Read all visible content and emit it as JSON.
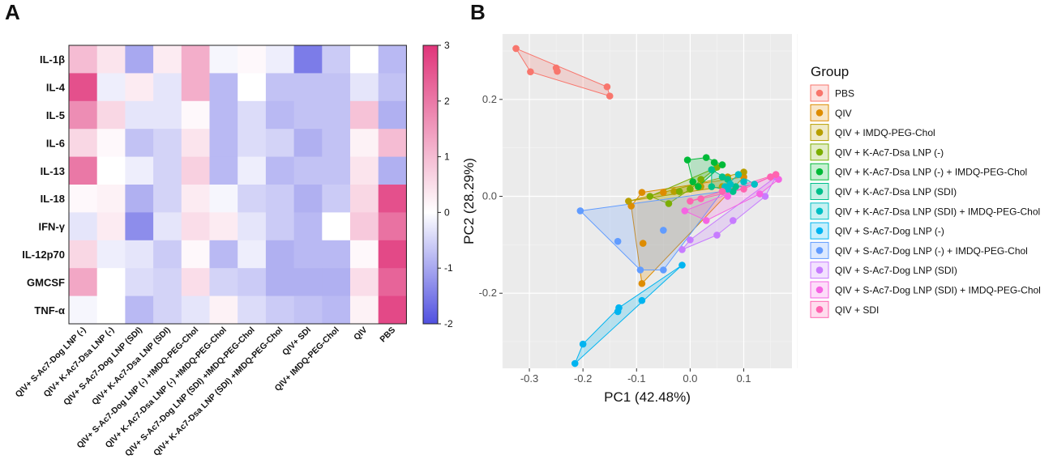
{
  "panel_labels": {
    "a": "A",
    "b": "B"
  },
  "chart_data": [
    {
      "type": "heatmap",
      "title": "",
      "rows": [
        "IL-1β",
        "IL-4",
        "IL-5",
        "IL-6",
        "IL-13",
        "IL-18",
        "IFN-γ",
        "IL-12p70",
        "GMCSF",
        "TNF-α"
      ],
      "columns": [
        "QIV+ S-Ac7-Dog LNP (-)",
        "QIV+ K-Ac7-Dsa LNP (-)",
        "QIV+ S-Ac7-Dog LNP (SDI)",
        "QIV+ K-Ac7-Dsa LNP (SDI)",
        "QIV+ S-Ac7-Dog LNP (-) +IMDQ-PEG-Chol",
        "QIV+ K-Ac7-Dsa LNP (-) +IMDQ-PEG-Chol",
        "QIV+ S-Ac7-Dog LNP (SDI) +IMDQ-PEG-Chol",
        "QIV+ K-Ac7-Dsa LNP (SDI) +IMDQ-PEG-Chol",
        "QIV+ SDI",
        "QIV+ IMDQ-PEG-Chol",
        "QIV",
        "PBS"
      ],
      "values": [
        [
          1.0,
          0.4,
          -1.0,
          0.3,
          1.2,
          -0.1,
          0.1,
          -0.2,
          -1.5,
          -0.6,
          0.0,
          -0.8
        ],
        [
          2.6,
          -0.2,
          0.3,
          -0.3,
          1.2,
          -0.8,
          0.0,
          -0.7,
          -0.7,
          -0.7,
          -0.3,
          -0.7
        ],
        [
          1.7,
          0.6,
          -0.3,
          -0.3,
          0.1,
          -0.8,
          -0.4,
          -0.8,
          -0.7,
          -0.7,
          0.9,
          -0.9
        ],
        [
          0.6,
          0.1,
          -0.7,
          -0.5,
          0.4,
          -0.8,
          -0.4,
          -0.5,
          -0.9,
          -0.7,
          0.2,
          1.0
        ],
        [
          2.0,
          0.0,
          -0.2,
          -0.5,
          0.7,
          -0.8,
          -0.2,
          -0.8,
          -0.7,
          -0.7,
          0.4,
          -0.9
        ],
        [
          0.1,
          0.2,
          -0.9,
          -0.5,
          0.3,
          -0.1,
          -0.5,
          -0.6,
          -0.9,
          -0.6,
          0.6,
          2.6
        ],
        [
          -0.3,
          0.3,
          -1.3,
          -0.3,
          0.5,
          0.3,
          -0.3,
          -0.6,
          -0.8,
          0.0,
          0.8,
          2.1
        ],
        [
          0.6,
          -0.2,
          -0.3,
          -0.6,
          0.1,
          -0.8,
          -0.2,
          -0.9,
          -0.8,
          -0.8,
          0.1,
          2.7
        ],
        [
          1.3,
          0.0,
          -0.4,
          -0.5,
          0.5,
          -0.5,
          -0.6,
          -0.9,
          -0.9,
          -0.9,
          0.5,
          2.3
        ],
        [
          -0.1,
          0.0,
          -0.8,
          -0.5,
          -0.3,
          0.2,
          -0.4,
          -0.6,
          -0.7,
          -0.8,
          0.2,
          2.7
        ]
      ],
      "scale": {
        "min": -2,
        "max": 3,
        "ticks": [
          "3",
          "2",
          "1",
          "0",
          "-1",
          "-2"
        ],
        "low_color": "#5050e0",
        "mid_color": "#ffffff",
        "high_color": "#e0357a"
      }
    },
    {
      "type": "scatter",
      "title": "",
      "xlabel": "PC1 (42.48%)",
      "ylabel": "PC2 (28.29%)",
      "xlim": [
        -0.35,
        0.19
      ],
      "ylim": [
        -0.355,
        0.335
      ],
      "xticks": [
        "-0.3",
        "-0.2",
        "-0.1",
        "0.0",
        "0.1"
      ],
      "yticks": [
        "0.2",
        "0.0",
        "-0.2"
      ],
      "grid": true,
      "hulls": true,
      "legend_title": "Group",
      "legend_position": "right",
      "series": [
        {
          "name": "PBS",
          "color": "#F8766D",
          "points": [
            [
              -0.325,
              0.305
            ],
            [
              -0.298,
              0.257
            ],
            [
              -0.25,
              0.265
            ],
            [
              -0.248,
              0.258
            ],
            [
              -0.155,
              0.226
            ],
            [
              -0.15,
              0.207
            ]
          ]
        },
        {
          "name": "QIV",
          "color": "#DE8C00",
          "points": [
            [
              -0.09,
              0.008
            ],
            [
              -0.05,
              0.008
            ],
            [
              -0.088,
              -0.097
            ],
            [
              -0.11,
              -0.02
            ],
            [
              -0.09,
              -0.18
            ],
            [
              0.1,
              0.04
            ]
          ]
        },
        {
          "name": "QIV + IMDQ-PEG-Chol",
          "color": "#B79F00",
          "points": [
            [
              -0.115,
              -0.01
            ],
            [
              -0.03,
              0.01
            ],
            [
              0.02,
              0.02
            ],
            [
              0.06,
              0.02
            ],
            [
              0.07,
              0.04
            ],
            [
              0.1,
              0.05
            ]
          ]
        },
        {
          "name": "QIV + K-Ac7-Dsa LNP (-)",
          "color": "#7CAE00",
          "points": [
            [
              -0.075,
              0.0
            ],
            [
              -0.04,
              -0.015
            ],
            [
              -0.02,
              0.01
            ],
            [
              0.0,
              0.015
            ],
            [
              0.02,
              0.035
            ],
            [
              0.05,
              0.06
            ]
          ]
        },
        {
          "name": "QIV + K-Ac7-Dsa LNP (-) + IMDQ-PEG-Chol",
          "color": "#00BA38",
          "points": [
            [
              -0.005,
              0.075
            ],
            [
              0.03,
              0.08
            ],
            [
              0.045,
              0.07
            ],
            [
              0.06,
              0.065
            ],
            [
              0.015,
              0.02
            ],
            [
              0.005,
              0.03
            ]
          ]
        },
        {
          "name": "QIV + K-Ac7-Dsa LNP (SDI)",
          "color": "#00C08B",
          "points": [
            [
              0.04,
              0.02
            ],
            [
              0.06,
              0.04
            ],
            [
              0.07,
              0.035
            ],
            [
              0.085,
              0.02
            ],
            [
              0.04,
              0.055
            ],
            [
              0.08,
              0.01
            ]
          ]
        },
        {
          "name": "QIV + K-Ac7-Dsa LNP (SDI) + IMDQ-PEG-Chol",
          "color": "#00BFC4",
          "points": [
            [
              0.07,
              0.015
            ],
            [
              0.075,
              0.025
            ],
            [
              0.09,
              0.045
            ],
            [
              0.1,
              0.03
            ],
            [
              0.12,
              0.025
            ],
            [
              0.065,
              0.02
            ]
          ]
        },
        {
          "name": "QIV + S-Ac7-Dog LNP (-)",
          "color": "#00B4F0",
          "points": [
            [
              -0.215,
              -0.345
            ],
            [
              -0.2,
              -0.305
            ],
            [
              -0.135,
              -0.238
            ],
            [
              -0.133,
              -0.23
            ],
            [
              -0.09,
              -0.215
            ],
            [
              -0.015,
              -0.142
            ]
          ]
        },
        {
          "name": "QIV + S-Ac7-Dog LNP (-) + IMDQ-PEG-Chol",
          "color": "#619CFF",
          "points": [
            [
              -0.205,
              -0.03
            ],
            [
              -0.135,
              -0.093
            ],
            [
              -0.093,
              -0.152
            ],
            [
              -0.05,
              -0.152
            ],
            [
              -0.05,
              -0.07
            ],
            [
              0.06,
              0.01
            ]
          ]
        },
        {
          "name": "QIV + S-Ac7-Dog LNP (SDI)",
          "color": "#C77CFF",
          "points": [
            [
              -0.015,
              -0.11
            ],
            [
              0.0,
              -0.09
            ],
            [
              0.05,
              -0.08
            ],
            [
              0.08,
              -0.05
            ],
            [
              0.14,
              0.0
            ],
            [
              0.16,
              0.04
            ]
          ]
        },
        {
          "name": "QIV + S-Ac7-Dog LNP (SDI) + IMDQ-PEG-Chol",
          "color": "#F564E3",
          "points": [
            [
              -0.01,
              -0.03
            ],
            [
              0.03,
              -0.05
            ],
            [
              0.07,
              0.0
            ],
            [
              0.13,
              0.005
            ],
            [
              0.15,
              0.04
            ],
            [
              0.165,
              0.035
            ]
          ]
        },
        {
          "name": "QIV + SDI",
          "color": "#FF64B0",
          "points": [
            [
              0.0,
              -0.01
            ],
            [
              0.06,
              0.01
            ],
            [
              0.1,
              0.015
            ],
            [
              0.15,
              0.04
            ],
            [
              0.16,
              0.045
            ],
            [
              0.02,
              -0.005
            ]
          ]
        }
      ]
    }
  ]
}
